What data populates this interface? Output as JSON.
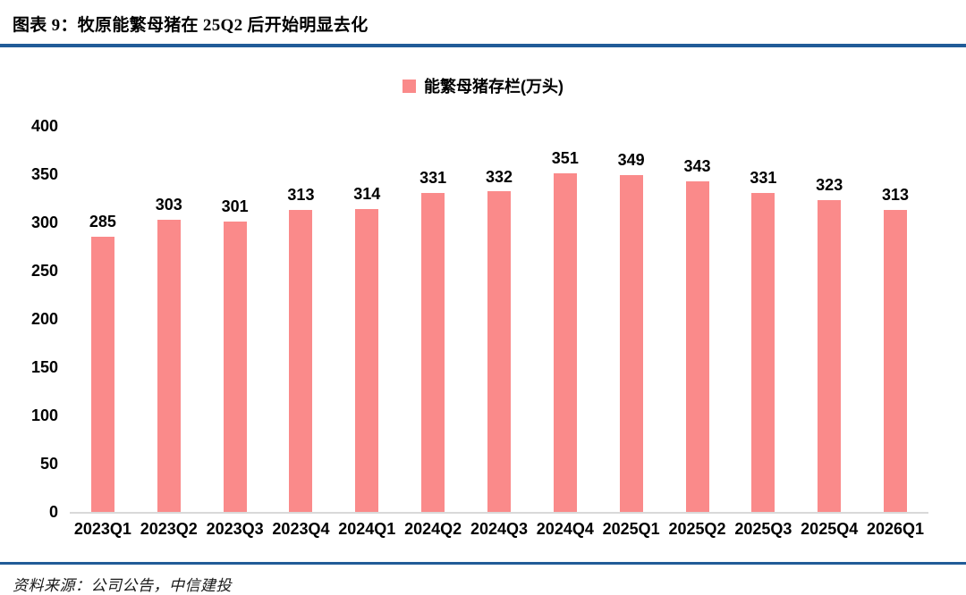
{
  "header": {
    "title": "图表 9：牧原能繁母猪在 25Q2 后开始明显去化"
  },
  "footer": {
    "source": "资料来源：公司公告，中信建投"
  },
  "chart_data": {
    "type": "bar",
    "title": "",
    "legend": [
      "能繁母猪存栏(万头)"
    ],
    "legend_position": "top-center",
    "categories": [
      "2023Q1",
      "2023Q2",
      "2023Q3",
      "2023Q4",
      "2024Q1",
      "2024Q2",
      "2024Q3",
      "2024Q4",
      "2025Q1",
      "2025Q2",
      "2025Q3",
      "2025Q4",
      "2026Q1"
    ],
    "values": [
      285,
      303,
      301,
      313,
      314,
      331,
      332,
      351,
      349,
      343,
      331,
      323,
      313
    ],
    "xlabel": "",
    "ylabel": "",
    "ylim": [
      0,
      400
    ],
    "yticks": [
      0,
      50,
      100,
      150,
      200,
      250,
      300,
      350,
      400
    ],
    "grid": false,
    "data_labels": true,
    "bar_color": "#FA8A8A",
    "accent_rule_color": "#215C98",
    "baseline_color": "#D9D9D9"
  }
}
